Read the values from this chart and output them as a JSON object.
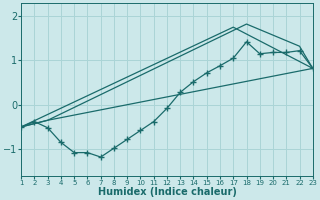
{
  "xlabel": "Humidex (Indice chaleur)",
  "bg_color": "#cce8ea",
  "grid_color": "#aad4d6",
  "line_color": "#1a6b6b",
  "xlim": [
    1,
    23
  ],
  "ylim": [
    -1.6,
    2.3
  ],
  "yticks": [
    -1,
    0,
    1,
    2
  ],
  "xticks": [
    1,
    2,
    3,
    4,
    5,
    6,
    7,
    8,
    9,
    10,
    11,
    12,
    13,
    14,
    15,
    16,
    17,
    18,
    19,
    20,
    21,
    22,
    23
  ],
  "line1_x": [
    1,
    2,
    3,
    4,
    5,
    6,
    7,
    8,
    9,
    10,
    11,
    12,
    13,
    14,
    15,
    16,
    17,
    18,
    19,
    20,
    21,
    22,
    23
  ],
  "line1_y": [
    -0.5,
    -0.38,
    -0.52,
    -0.85,
    -1.08,
    -1.08,
    -1.18,
    -0.98,
    -0.78,
    -0.58,
    -0.38,
    -0.08,
    0.28,
    0.52,
    0.72,
    0.88,
    1.05,
    1.42,
    1.15,
    1.18,
    1.18,
    1.22,
    0.82
  ],
  "line2_x": [
    1,
    3,
    23
  ],
  "line2_y": [
    -0.5,
    -0.35,
    0.82
  ],
  "line3_x": [
    1,
    3,
    18,
    22,
    23
  ],
  "line3_y": [
    -0.5,
    -0.35,
    1.82,
    1.32,
    0.82
  ],
  "line4_x": [
    1,
    17,
    23
  ],
  "line4_y": [
    -0.5,
    1.75,
    0.82
  ]
}
